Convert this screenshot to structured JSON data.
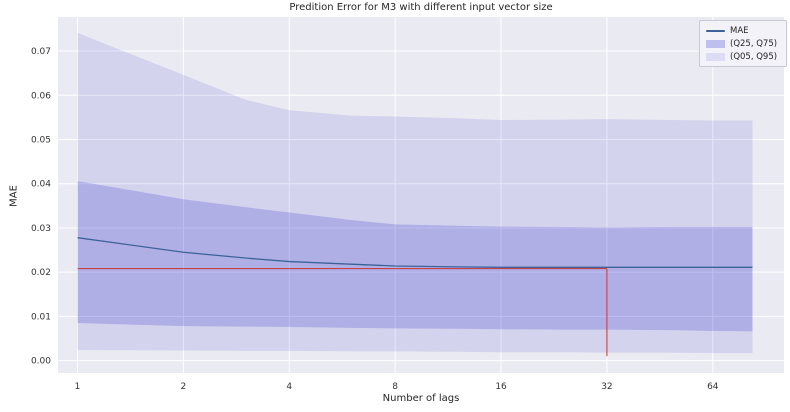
{
  "chart_data": {
    "type": "line",
    "title": "Predition Error for M3 with different input vector size",
    "xlabel": "Number of lags",
    "ylabel": "MAE",
    "x_scale": "log2",
    "xlim": [
      0.88,
      102
    ],
    "ylim": [
      -0.0028,
      0.0777
    ],
    "x_ticks": [
      1,
      2,
      4,
      8,
      16,
      32,
      64
    ],
    "y_ticks": [
      0.0,
      0.01,
      0.02,
      0.03,
      0.04,
      0.05,
      0.06,
      0.07
    ],
    "grid": true,
    "legend_position": "upper right",
    "legend": [
      "MAE",
      "(Q25, Q75)",
      "(Q05, Q95)"
    ],
    "x": [
      1,
      2,
      3,
      4,
      6,
      8,
      12,
      16,
      24,
      32,
      48,
      64,
      83
    ],
    "series": [
      {
        "name": "MAE",
        "values": [
          0.0278,
          0.0245,
          0.0232,
          0.0224,
          0.0218,
          0.0214,
          0.0212,
          0.0211,
          0.0211,
          0.0211,
          0.0211,
          0.0211,
          0.0211
        ]
      },
      {
        "name": "Q75",
        "values": [
          0.0406,
          0.0365,
          0.0347,
          0.0335,
          0.0318,
          0.0308,
          0.0305,
          0.0303,
          0.0302,
          0.0301,
          0.0302,
          0.0302,
          0.0302
        ]
      },
      {
        "name": "Q25",
        "values": [
          0.0085,
          0.0078,
          0.0077,
          0.0076,
          0.0074,
          0.0073,
          0.0072,
          0.0071,
          0.007,
          0.007,
          0.0069,
          0.0067,
          0.0066
        ]
      },
      {
        "name": "Q95",
        "values": [
          0.0741,
          0.0646,
          0.059,
          0.0566,
          0.0554,
          0.0552,
          0.0548,
          0.0544,
          0.0545,
          0.0546,
          0.0544,
          0.0543,
          0.0543
        ]
      },
      {
        "name": "Q05",
        "values": [
          0.0024,
          0.0023,
          0.0022,
          0.0022,
          0.0021,
          0.0021,
          0.002,
          0.0019,
          0.0019,
          0.0018,
          0.0018,
          0.0017,
          0.0017
        ]
      }
    ],
    "annotations": {
      "hline": {
        "y": 0.0208,
        "x_from": 1,
        "x_to": 32
      },
      "vline": {
        "x": 32,
        "y_from": 0.001,
        "y_to": 0.0208
      }
    },
    "colors": {
      "plot_bg": "#eaeaf2",
      "grid": "#ffffff",
      "band": "#3333cc",
      "inner_alpha": 0.22,
      "outer_alpha": 0.12,
      "mae_line": "#3c6398",
      "marker_red": "#cc3333",
      "legend_swatch_inner": "#bfbfed",
      "legend_swatch_outer": "#dcdcf5"
    }
  }
}
